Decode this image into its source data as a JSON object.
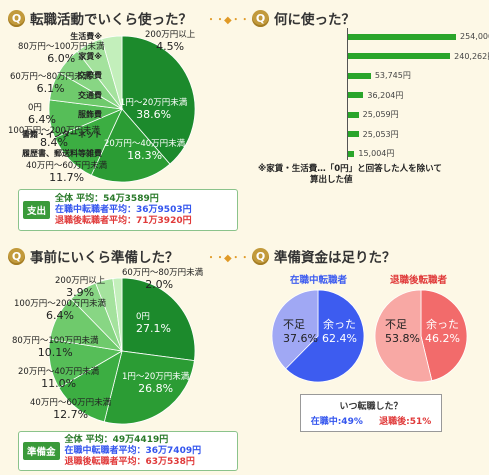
{
  "sections": {
    "q1": {
      "badge": "Q",
      "title": "転職活動でいくら使った？",
      "dots": "・・◆・・"
    },
    "q2": {
      "badge": "Q",
      "title": "何に使った？"
    },
    "q3": {
      "badge": "Q",
      "title": "事前にいくら準備した？"
    },
    "q4": {
      "badge": "Q",
      "title": "準備資金は足りた？"
    }
  },
  "spend_pie": {
    "slices": [
      {
        "label": "1円〜20万円未満",
        "pct": "38.6%",
        "value": 38.6,
        "color": "#1c8a2c"
      },
      {
        "label": "20万円〜40万円未満",
        "pct": "18.3%",
        "value": 18.3,
        "color": "#2b9c34"
      },
      {
        "label": "40万円〜60万円未満",
        "pct": "11.7%",
        "value": 11.7,
        "color": "#3cae42"
      },
      {
        "label": "100万円〜200万円未満",
        "pct": "8.4%",
        "value": 8.4,
        "color": "#56be58"
      },
      {
        "label": "0円",
        "pct": "6.4%",
        "value": 6.4,
        "color": "#6fca6c"
      },
      {
        "label": "60万円〜80万円未満",
        "pct": "6.1%",
        "value": 6.1,
        "color": "#88d684"
      },
      {
        "label": "80万円〜100万円未満",
        "pct": "6.0%",
        "value": 6.0,
        "color": "#a4e29d"
      },
      {
        "label": "200万円以上",
        "pct": "4.5%",
        "value": 4.5,
        "color": "#c3efbb"
      }
    ],
    "summary": {
      "tag": "支出",
      "all": "全体 平均：54万3589円",
      "in": "在職中転職者平均：36万9503円",
      "out": "退職後転職者平均：71万3920円"
    }
  },
  "usage_bars": {
    "items": [
      {
        "name": "生活費※",
        "value": 254000,
        "label": "254,000円"
      },
      {
        "name": "家賃※",
        "value": 240262,
        "label": "240,262円"
      },
      {
        "name": "交際費",
        "value": 53745,
        "label": "53,745円"
      },
      {
        "name": "交通費",
        "value": 36204,
        "label": "36,204円"
      },
      {
        "name": "服飾費",
        "value": 25059,
        "label": "25,059円"
      },
      {
        "name": "書籍・インターネット",
        "value": 25053,
        "label": "25,053円"
      },
      {
        "name": "履歴書、郵送料等雑費",
        "value": 15004,
        "label": "15,004円"
      }
    ],
    "note_line1": "※家賃・生活費…「0円」と回答した人を除いて",
    "note_line2": "算出した値"
  },
  "prep_pie": {
    "slices": [
      {
        "label": "0円",
        "pct": "27.1%",
        "value": 27.1,
        "color": "#1c8a2c"
      },
      {
        "label": "1円〜20万円未満",
        "pct": "26.8%",
        "value": 26.8,
        "color": "#2b9c34"
      },
      {
        "label": "40万円〜60万円未満",
        "pct": "12.7%",
        "value": 12.7,
        "color": "#3cae42"
      },
      {
        "label": "20万円〜40万円未満",
        "pct": "11.0%",
        "value": 11.0,
        "color": "#56be58"
      },
      {
        "label": "80万円〜100万円未満",
        "pct": "10.1%",
        "value": 10.1,
        "color": "#6fca6c"
      },
      {
        "label": "100万円〜200万円未満",
        "pct": "6.4%",
        "value": 6.4,
        "color": "#88d684"
      },
      {
        "label": "200万円以上",
        "pct": "3.9%",
        "value": 3.9,
        "color": "#a4e29d"
      },
      {
        "label": "60万円〜80万円未満",
        "pct": "2.0%",
        "value": 2.0,
        "color": "#c3efbb"
      }
    ],
    "summary": {
      "tag": "準備金",
      "all": "全体 平均：49万4419円",
      "in": "在職中転職者平均：36万7409円",
      "out": "退職後転職者平均：63万538円"
    }
  },
  "enough": {
    "in_title": "在職中転職者",
    "out_title": "退職後転職者",
    "in": {
      "yes_label": "余った",
      "yes_pct": "62.4%",
      "yes": 62.4,
      "no_label": "不足",
      "no_pct": "37.6%",
      "no": 37.6,
      "yes_color": "#3d5cf0",
      "no_color": "#a0a8f4"
    },
    "out": {
      "yes_label": "余った",
      "yes_pct": "46.2%",
      "yes": 46.2,
      "no_label": "不足",
      "no_pct": "53.8%",
      "no": 53.8,
      "yes_color": "#f26b6b",
      "no_color": "#f8a8a4"
    },
    "when_title": "いつ転職した？",
    "when_in": "在職中:49%",
    "when_out": "退職後:51%"
  },
  "chart_data": [
    {
      "type": "pie",
      "title": "転職活動でいくら使った？",
      "categories": [
        "1円〜20万円未満",
        "20万円〜40万円未満",
        "40万円〜60万円未満",
        "100万円〜200万円未満",
        "0円",
        "60万円〜80万円未満",
        "80万円〜100万円未満",
        "200万円以上"
      ],
      "values": [
        38.6,
        18.3,
        11.7,
        8.4,
        6.4,
        6.1,
        6.0,
        4.5
      ]
    },
    {
      "type": "bar",
      "title": "何に使った？",
      "categories": [
        "生活費※",
        "家賃※",
        "交際費",
        "交通費",
        "服飾費",
        "書籍・インターネット",
        "履歴書、郵送料等雑費"
      ],
      "values": [
        254000,
        240262,
        53745,
        36204,
        25059,
        25053,
        15004
      ]
    },
    {
      "type": "pie",
      "title": "事前にいくら準備した？",
      "categories": [
        "0円",
        "1円〜20万円未満",
        "40万円〜60万円未満",
        "20万円〜40万円未満",
        "80万円〜100万円未満",
        "100万円〜200万円未満",
        "200万円以上",
        "60万円〜80万円未満"
      ],
      "values": [
        27.1,
        26.8,
        12.7,
        11.0,
        10.1,
        6.4,
        3.9,
        2.0
      ]
    },
    {
      "type": "pie",
      "title": "在職中転職者",
      "categories": [
        "余った",
        "不足"
      ],
      "values": [
        62.4,
        37.6
      ]
    },
    {
      "type": "pie",
      "title": "退職後転職者",
      "categories": [
        "余った",
        "不足"
      ],
      "values": [
        46.2,
        53.8
      ]
    }
  ]
}
